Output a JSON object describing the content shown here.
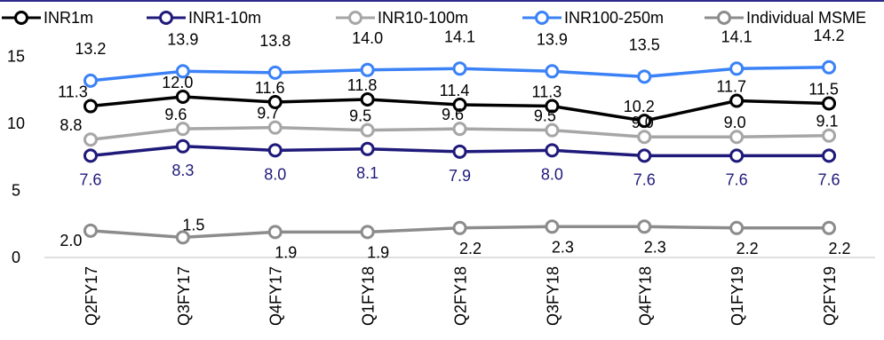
{
  "chart_data": {
    "type": "line",
    "title": "",
    "xlabel": "",
    "ylabel": "",
    "categories": [
      "Q2FY17",
      "Q3FY17",
      "Q4FY17",
      "Q1FY18",
      "Q2FY18",
      "Q3FY18",
      "Q4FY18",
      "Q1FY19",
      "Q2FY19"
    ],
    "ylim": [
      0,
      17.5
    ],
    "yticks": [
      0,
      5,
      10,
      15
    ],
    "grid": false,
    "legend_position": "top",
    "series": [
      {
        "name": "INR1m",
        "color": "#000000",
        "values": [
          11.3,
          12.0,
          11.6,
          11.8,
          11.4,
          11.3,
          10.2,
          11.7,
          11.5
        ],
        "label_color": "#000000"
      },
      {
        "name": "INR1-10m",
        "color": "#1f1a7a",
        "values": [
          7.6,
          8.3,
          8.0,
          8.1,
          7.9,
          8.0,
          7.6,
          7.6,
          7.6
        ],
        "label_color": "#1f1a7a"
      },
      {
        "name": "INR10-100m",
        "color": "#a6a6a6",
        "values": [
          8.8,
          9.6,
          9.7,
          9.5,
          9.6,
          9.5,
          9.0,
          9.0,
          9.1
        ],
        "label_color": "#000000"
      },
      {
        "name": "INR100-250m",
        "color": "#3b82f6",
        "values": [
          13.2,
          13.9,
          13.8,
          14.0,
          14.1,
          13.9,
          13.5,
          14.1,
          14.2
        ],
        "label_color": "#000000"
      },
      {
        "name": "Individual MSME",
        "color": "#8c8c8c",
        "values": [
          2.0,
          1.5,
          1.9,
          1.9,
          2.2,
          2.3,
          2.3,
          2.2,
          2.2
        ],
        "label_color": "#000000"
      }
    ]
  }
}
